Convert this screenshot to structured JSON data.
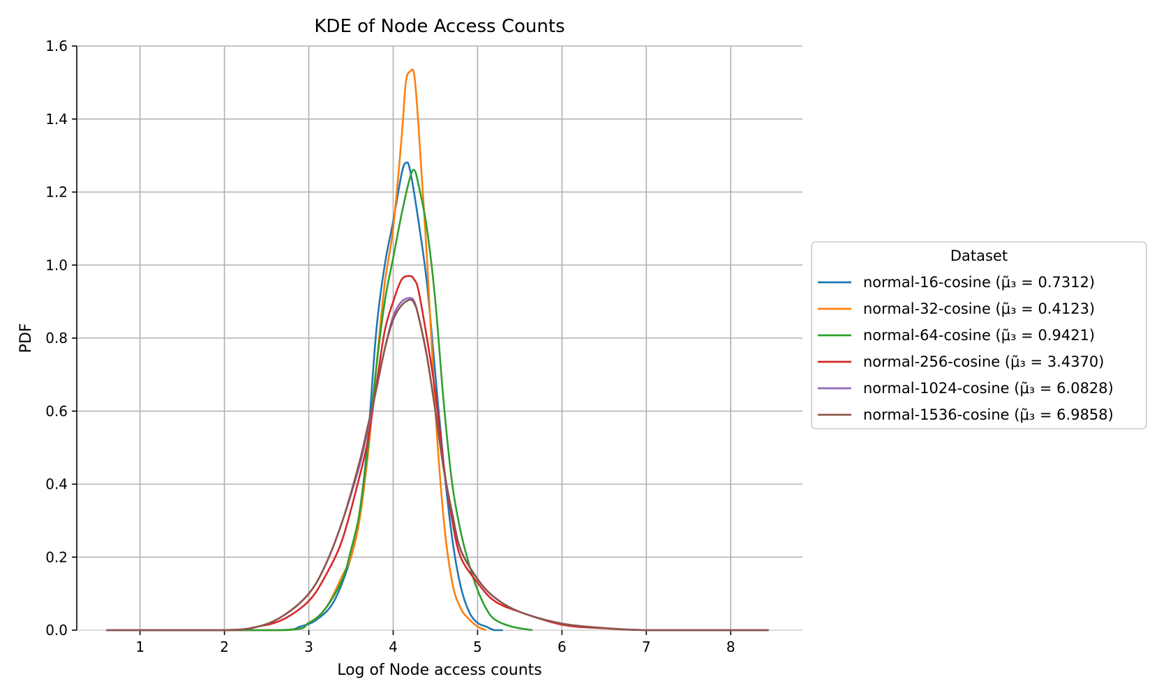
{
  "chart_data": {
    "type": "line",
    "title": "KDE of Node Access Counts",
    "xlabel": "Log of Node access counts",
    "ylabel": "PDF",
    "xlim": [
      0.25,
      8.85
    ],
    "ylim": [
      0.0,
      1.6
    ],
    "x_ticks": [
      "1",
      "2",
      "3",
      "4",
      "5",
      "6",
      "7",
      "8"
    ],
    "y_ticks": [
      "0.0",
      "0.2",
      "0.4",
      "0.6",
      "0.8",
      "1.0",
      "1.2",
      "1.4",
      "1.6"
    ],
    "grid": true,
    "legend": {
      "title": "Dataset",
      "placement": "outside-right"
    },
    "series": [
      {
        "name": "normal-16-cosine (μ̃₃ = 0.7312)",
        "color": "#1f77b4",
        "x": [
          1.0,
          2.6,
          2.9,
          3.1,
          3.3,
          3.5,
          3.6,
          3.7,
          3.8,
          3.9,
          4.0,
          4.1,
          4.15,
          4.2,
          4.3,
          4.4,
          4.5,
          4.6,
          4.7,
          4.8,
          4.9,
          5.0,
          5.1,
          5.2,
          5.3
        ],
        "y": [
          0.0,
          0.0,
          0.01,
          0.03,
          0.08,
          0.2,
          0.32,
          0.52,
          0.82,
          1.0,
          1.12,
          1.25,
          1.28,
          1.26,
          1.12,
          0.95,
          0.7,
          0.45,
          0.25,
          0.12,
          0.05,
          0.02,
          0.01,
          0.0,
          0.0
        ]
      },
      {
        "name": "normal-32-cosine (μ̃₃ = 0.4123)",
        "color": "#ff7f0e",
        "x": [
          1.0,
          2.7,
          3.0,
          3.2,
          3.4,
          3.5,
          3.6,
          3.7,
          3.8,
          3.9,
          4.0,
          4.1,
          4.15,
          4.2,
          4.25,
          4.3,
          4.4,
          4.5,
          4.6,
          4.7,
          4.8,
          4.9,
          5.0,
          5.1
        ],
        "y": [
          0.0,
          0.0,
          0.02,
          0.06,
          0.15,
          0.2,
          0.3,
          0.48,
          0.72,
          0.95,
          1.1,
          1.35,
          1.5,
          1.53,
          1.52,
          1.38,
          1.02,
          0.6,
          0.3,
          0.13,
          0.06,
          0.03,
          0.01,
          0.0
        ]
      },
      {
        "name": "normal-64-cosine (μ̃₃ = 0.9421)",
        "color": "#2ca02c",
        "x": [
          1.0,
          2.7,
          3.0,
          3.2,
          3.4,
          3.5,
          3.6,
          3.7,
          3.8,
          3.9,
          4.0,
          4.1,
          4.2,
          4.25,
          4.3,
          4.4,
          4.5,
          4.6,
          4.7,
          4.8,
          4.9,
          5.0,
          5.1,
          5.2,
          5.4,
          5.65
        ],
        "y": [
          0.0,
          0.0,
          0.02,
          0.06,
          0.14,
          0.22,
          0.32,
          0.5,
          0.72,
          0.9,
          1.02,
          1.14,
          1.24,
          1.26,
          1.22,
          1.1,
          0.9,
          0.62,
          0.4,
          0.27,
          0.18,
          0.11,
          0.06,
          0.03,
          0.01,
          0.0
        ]
      },
      {
        "name": "normal-256-cosine (μ̃₃ = 3.4370)",
        "color": "#d62728",
        "x": [
          0.6,
          2.0,
          2.4,
          2.7,
          3.0,
          3.2,
          3.4,
          3.6,
          3.7,
          3.8,
          3.9,
          4.0,
          4.1,
          4.2,
          4.25,
          4.3,
          4.4,
          4.5,
          4.6,
          4.7,
          4.8,
          5.0,
          5.2,
          5.5,
          6.0,
          6.5,
          7.0,
          8.0,
          8.45
        ],
        "y": [
          0.0,
          0.0,
          0.01,
          0.03,
          0.08,
          0.15,
          0.25,
          0.42,
          0.52,
          0.67,
          0.82,
          0.9,
          0.96,
          0.97,
          0.96,
          0.93,
          0.8,
          0.65,
          0.45,
          0.3,
          0.2,
          0.13,
          0.08,
          0.05,
          0.015,
          0.005,
          0.0,
          0.0,
          0.0
        ]
      },
      {
        "name": "normal-1024-cosine (μ̃₃ = 6.0828)",
        "color": "#9467bd",
        "x": [
          0.6,
          2.0,
          2.4,
          2.7,
          3.0,
          3.2,
          3.4,
          3.6,
          3.7,
          3.8,
          3.9,
          4.0,
          4.1,
          4.2,
          4.25,
          4.3,
          4.4,
          4.5,
          4.6,
          4.7,
          4.8,
          5.0,
          5.2,
          5.5,
          6.0,
          6.5,
          7.0,
          8.0,
          8.45
        ],
        "y": [
          0.0,
          0.0,
          0.01,
          0.04,
          0.1,
          0.18,
          0.3,
          0.45,
          0.55,
          0.66,
          0.77,
          0.86,
          0.9,
          0.91,
          0.9,
          0.86,
          0.75,
          0.6,
          0.44,
          0.32,
          0.22,
          0.14,
          0.09,
          0.05,
          0.018,
          0.006,
          0.0,
          0.0,
          0.0
        ]
      },
      {
        "name": "normal-1536-cosine (μ̃₃ = 6.9858)",
        "color": "#8c564b",
        "x": [
          0.6,
          2.0,
          2.4,
          2.7,
          3.0,
          3.2,
          3.4,
          3.6,
          3.7,
          3.8,
          3.9,
          4.0,
          4.1,
          4.2,
          4.25,
          4.3,
          4.4,
          4.5,
          4.6,
          4.7,
          4.8,
          5.0,
          5.2,
          5.5,
          6.0,
          6.5,
          7.0,
          8.0,
          8.45
        ],
        "y": [
          0.0,
          0.0,
          0.01,
          0.04,
          0.1,
          0.18,
          0.3,
          0.46,
          0.56,
          0.66,
          0.77,
          0.85,
          0.89,
          0.905,
          0.895,
          0.86,
          0.75,
          0.6,
          0.44,
          0.32,
          0.22,
          0.14,
          0.09,
          0.05,
          0.018,
          0.006,
          0.0,
          0.0,
          0.0
        ]
      }
    ]
  }
}
